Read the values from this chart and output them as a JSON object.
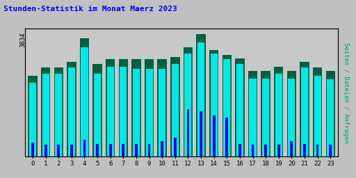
{
  "title": "Stunden-Statistik im Monat Maerz 2023",
  "ylabel_right": "Seiten / Dateien / Anfragen",
  "ytick_label": "3834",
  "hours": [
    0,
    1,
    2,
    3,
    4,
    5,
    6,
    7,
    8,
    9,
    10,
    11,
    12,
    13,
    14,
    15,
    16,
    17,
    18,
    19,
    20,
    21,
    22,
    23
  ],
  "green_vals": [
    680,
    750,
    750,
    800,
    1000,
    780,
    820,
    820,
    820,
    820,
    820,
    840,
    920,
    1034,
    900,
    860,
    830,
    720,
    720,
    760,
    720,
    800,
    750,
    720
  ],
  "cyan_vals": [
    620,
    700,
    700,
    750,
    920,
    700,
    760,
    760,
    740,
    740,
    740,
    780,
    870,
    960,
    870,
    820,
    780,
    660,
    660,
    700,
    660,
    750,
    680,
    650
  ],
  "blue_vals": [
    120,
    100,
    100,
    100,
    140,
    110,
    110,
    110,
    110,
    110,
    130,
    160,
    400,
    380,
    350,
    330,
    110,
    100,
    100,
    100,
    130,
    110,
    100,
    100
  ],
  "ymax": 1080,
  "ymin": 0,
  "bg_color": "#c0c0c0",
  "plot_bg": "#c8c8c8",
  "title_color": "#0000ff",
  "green_color": "#006040",
  "cyan_color": "#00e8e8",
  "blue_color": "#0000e8",
  "right_label_color": "#00a060",
  "grid_color": "#b0b0b0"
}
